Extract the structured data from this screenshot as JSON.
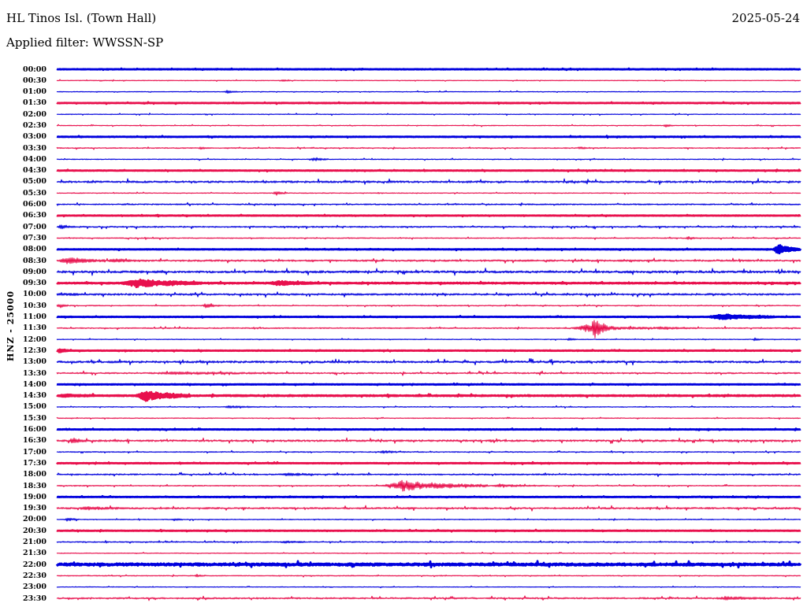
{
  "header": {
    "station_title": "HL Tinos Isl. (Town Hall)",
    "filter_label": "Applied filter: WWSSN-SP",
    "date": "2025-05-24"
  },
  "y_axis": {
    "channel_label": "HNZ - 25000"
  },
  "chart_data": {
    "type": "line",
    "subtype": "helicorder-seismogram-24h",
    "title": "HL Tinos Isl. (Town Hall)",
    "filter": "WWSSN-SP",
    "date": "2025-05-24",
    "channel": "HNZ",
    "scale": 25000,
    "row_interval_minutes": 30,
    "grid": false,
    "legend": false,
    "colors": {
      "blue": "#0000dd",
      "red": "#e8104d"
    },
    "rows": [
      {
        "label": "00:00",
        "color": "blue",
        "bold": true,
        "noise": 0.35,
        "events": []
      },
      {
        "label": "00:30",
        "color": "red",
        "bold": false,
        "noise": 0.4,
        "events": [
          {
            "s": 0.3,
            "e": 0.315,
            "a": 1.5
          }
        ]
      },
      {
        "label": "01:00",
        "color": "blue",
        "bold": false,
        "noise": 0.4,
        "events": [
          {
            "s": 0.225,
            "e": 0.245,
            "a": 2
          }
        ]
      },
      {
        "label": "01:30",
        "color": "red",
        "bold": true,
        "noise": 0.35,
        "events": []
      },
      {
        "label": "02:00",
        "color": "blue",
        "bold": false,
        "noise": 0.45,
        "events": []
      },
      {
        "label": "02:30",
        "color": "red",
        "bold": false,
        "noise": 0.45,
        "events": [
          {
            "s": 0.815,
            "e": 0.83,
            "a": 2
          }
        ]
      },
      {
        "label": "03:00",
        "color": "blue",
        "bold": true,
        "noise": 0.35,
        "events": []
      },
      {
        "label": "03:30",
        "color": "red",
        "bold": false,
        "noise": 0.6,
        "events": [
          {
            "s": 0.19,
            "e": 0.205,
            "a": 1.5
          },
          {
            "s": 0.7,
            "e": 0.715,
            "a": 1.5
          }
        ]
      },
      {
        "label": "04:00",
        "color": "blue",
        "bold": false,
        "noise": 0.5,
        "events": [
          {
            "s": 0.34,
            "e": 0.365,
            "a": 2.5
          }
        ]
      },
      {
        "label": "04:30",
        "color": "red",
        "bold": true,
        "noise": 0.35,
        "events": []
      },
      {
        "label": "05:00",
        "color": "blue",
        "bold": false,
        "noise": 1.3,
        "events": []
      },
      {
        "label": "05:30",
        "color": "red",
        "bold": false,
        "noise": 0.5,
        "events": [
          {
            "s": 0.29,
            "e": 0.31,
            "a": 2.5
          }
        ]
      },
      {
        "label": "06:00",
        "color": "blue",
        "bold": false,
        "noise": 0.8,
        "events": []
      },
      {
        "label": "06:30",
        "color": "red",
        "bold": true,
        "noise": 0.35,
        "events": []
      },
      {
        "label": "07:00",
        "color": "blue",
        "bold": false,
        "noise": 0.9,
        "events": [
          {
            "s": 0.0,
            "e": 0.025,
            "a": 2.5
          }
        ]
      },
      {
        "label": "07:30",
        "color": "red",
        "bold": false,
        "noise": 0.6,
        "events": [
          {
            "s": 0.845,
            "e": 0.86,
            "a": 2
          }
        ]
      },
      {
        "label": "08:00",
        "color": "blue",
        "bold": true,
        "noise": 0.35,
        "events": [
          {
            "s": 0.962,
            "e": 1.0,
            "a": 6
          }
        ]
      },
      {
        "label": "08:30",
        "color": "red",
        "bold": false,
        "noise": 1.1,
        "events": [
          {
            "s": 0.0,
            "e": 0.065,
            "a": 4
          },
          {
            "s": 0.065,
            "e": 0.12,
            "a": 1.5
          }
        ]
      },
      {
        "label": "09:00",
        "color": "blue",
        "bold": false,
        "noise": 1.5,
        "events": []
      },
      {
        "label": "09:30",
        "color": "red",
        "bold": true,
        "noise": 0.6,
        "events": [
          {
            "s": 0.085,
            "e": 0.195,
            "a": 5
          },
          {
            "s": 0.285,
            "e": 0.35,
            "a": 2.5
          }
        ]
      },
      {
        "label": "10:00",
        "color": "blue",
        "bold": false,
        "noise": 1.2,
        "events": [
          {
            "s": 0.0,
            "e": 0.03,
            "a": 2
          }
        ]
      },
      {
        "label": "10:30",
        "color": "red",
        "bold": false,
        "noise": 0.6,
        "events": [
          {
            "s": 0.0,
            "e": 0.015,
            "a": 3
          },
          {
            "s": 0.195,
            "e": 0.22,
            "a": 3
          }
        ]
      },
      {
        "label": "11:00",
        "color": "blue",
        "bold": true,
        "noise": 0.35,
        "events": [
          {
            "s": 0.875,
            "e": 0.965,
            "a": 3.5
          }
        ]
      },
      {
        "label": "11:30",
        "color": "red",
        "bold": false,
        "noise": 0.7,
        "events": [
          {
            "s": 0.69,
            "e": 0.8,
            "a": 4
          },
          {
            "s": 0.718,
            "e": 0.74,
            "a": 12
          },
          {
            "s": 0.8,
            "e": 0.86,
            "a": 1.5
          }
        ]
      },
      {
        "label": "12:00",
        "color": "blue",
        "bold": false,
        "noise": 0.45,
        "events": [
          {
            "s": 0.685,
            "e": 0.7,
            "a": 2
          },
          {
            "s": 0.935,
            "e": 0.95,
            "a": 2
          }
        ]
      },
      {
        "label": "12:30",
        "color": "red",
        "bold": true,
        "noise": 0.35,
        "events": [
          {
            "s": 0.0,
            "e": 0.018,
            "a": 3
          }
        ]
      },
      {
        "label": "13:00",
        "color": "blue",
        "bold": false,
        "noise": 1.4,
        "events": []
      },
      {
        "label": "13:30",
        "color": "red",
        "bold": false,
        "noise": 0.9,
        "events": [
          {
            "s": 0.12,
            "e": 0.32,
            "a": 1.3
          }
        ]
      },
      {
        "label": "14:00",
        "color": "blue",
        "bold": true,
        "noise": 0.35,
        "events": []
      },
      {
        "label": "14:30",
        "color": "red",
        "bold": true,
        "noise": 0.6,
        "events": [
          {
            "s": 0.0,
            "e": 0.05,
            "a": 1.5
          },
          {
            "s": 0.105,
            "e": 0.18,
            "a": 6.5
          }
        ]
      },
      {
        "label": "15:00",
        "color": "blue",
        "bold": false,
        "noise": 0.5,
        "events": [
          {
            "s": 0.22,
            "e": 0.28,
            "a": 1.3
          }
        ]
      },
      {
        "label": "15:30",
        "color": "red",
        "bold": false,
        "noise": 0.45,
        "events": []
      },
      {
        "label": "16:00",
        "color": "blue",
        "bold": true,
        "noise": 0.35,
        "events": []
      },
      {
        "label": "16:30",
        "color": "red",
        "bold": false,
        "noise": 1.2,
        "events": [
          {
            "s": 0.015,
            "e": 0.045,
            "a": 3
          }
        ]
      },
      {
        "label": "17:00",
        "color": "blue",
        "bold": false,
        "noise": 0.6,
        "events": [
          {
            "s": 0.43,
            "e": 0.47,
            "a": 1.5
          }
        ]
      },
      {
        "label": "17:30",
        "color": "red",
        "bold": true,
        "noise": 0.35,
        "events": []
      },
      {
        "label": "18:00",
        "color": "blue",
        "bold": false,
        "noise": 0.9,
        "events": [
          {
            "s": 0.3,
            "e": 0.345,
            "a": 2
          }
        ]
      },
      {
        "label": "18:30",
        "color": "red",
        "bold": false,
        "noise": 0.6,
        "events": [
          {
            "s": 0.435,
            "e": 0.58,
            "a": 7
          },
          {
            "s": 0.58,
            "e": 0.66,
            "a": 1.5
          }
        ]
      },
      {
        "label": "19:00",
        "color": "blue",
        "bold": true,
        "noise": 0.35,
        "events": []
      },
      {
        "label": "19:30",
        "color": "red",
        "bold": false,
        "noise": 1.1,
        "events": [
          {
            "s": 0.03,
            "e": 0.09,
            "a": 1.5
          }
        ]
      },
      {
        "label": "20:00",
        "color": "blue",
        "bold": false,
        "noise": 0.5,
        "events": [
          {
            "s": 0.01,
            "e": 0.03,
            "a": 2.5
          },
          {
            "s": 0.155,
            "e": 0.17,
            "a": 1.5
          }
        ]
      },
      {
        "label": "20:30",
        "color": "red",
        "bold": true,
        "noise": 0.35,
        "events": []
      },
      {
        "label": "21:00",
        "color": "blue",
        "bold": false,
        "noise": 0.7,
        "events": [
          {
            "s": 0.3,
            "e": 0.335,
            "a": 1.5
          }
        ]
      },
      {
        "label": "21:30",
        "color": "red",
        "bold": false,
        "noise": 0.45,
        "events": []
      },
      {
        "label": "22:00",
        "color": "blue",
        "bold": true,
        "noise": 1.4,
        "events": []
      },
      {
        "label": "22:30",
        "color": "red",
        "bold": false,
        "noise": 0.5,
        "events": [
          {
            "s": 0.185,
            "e": 0.2,
            "a": 2
          }
        ]
      },
      {
        "label": "23:00",
        "color": "blue",
        "bold": false,
        "noise": 0.4,
        "events": []
      },
      {
        "label": "23:30",
        "color": "red",
        "bold": false,
        "noise": 1.0,
        "events": [
          {
            "s": 0.885,
            "e": 0.96,
            "a": 1.8
          }
        ]
      }
    ]
  }
}
